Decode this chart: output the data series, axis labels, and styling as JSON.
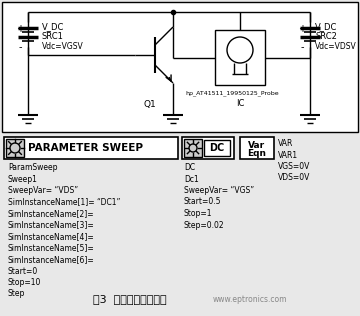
{
  "bg_color": "#e8e8e8",
  "title": "图3  封装模型仿真电路",
  "watermark": "www.eptronics.com",
  "param_sweep_text": [
    "ParamSweep",
    "Sweep1",
    "SweepVar= “VDS”",
    "SimInstanceName[1]= “DC1”",
    "SimInstanceName[2]=",
    "SimInstanceName[3]=",
    "SimInstanceName[4]=",
    "SimInstanceName[5]=",
    "SimInstanceName[6]=",
    "Start=0",
    "Stop=10",
    "Step"
  ],
  "dc_text": [
    "DC",
    "Dc1",
    "SweepVar= “VGS”",
    "Start=0.5",
    "Stop=1",
    "Step=0.02"
  ],
  "var_text": [
    "VAR",
    "VAR1",
    "VGS=0V",
    "VDS=0V"
  ]
}
